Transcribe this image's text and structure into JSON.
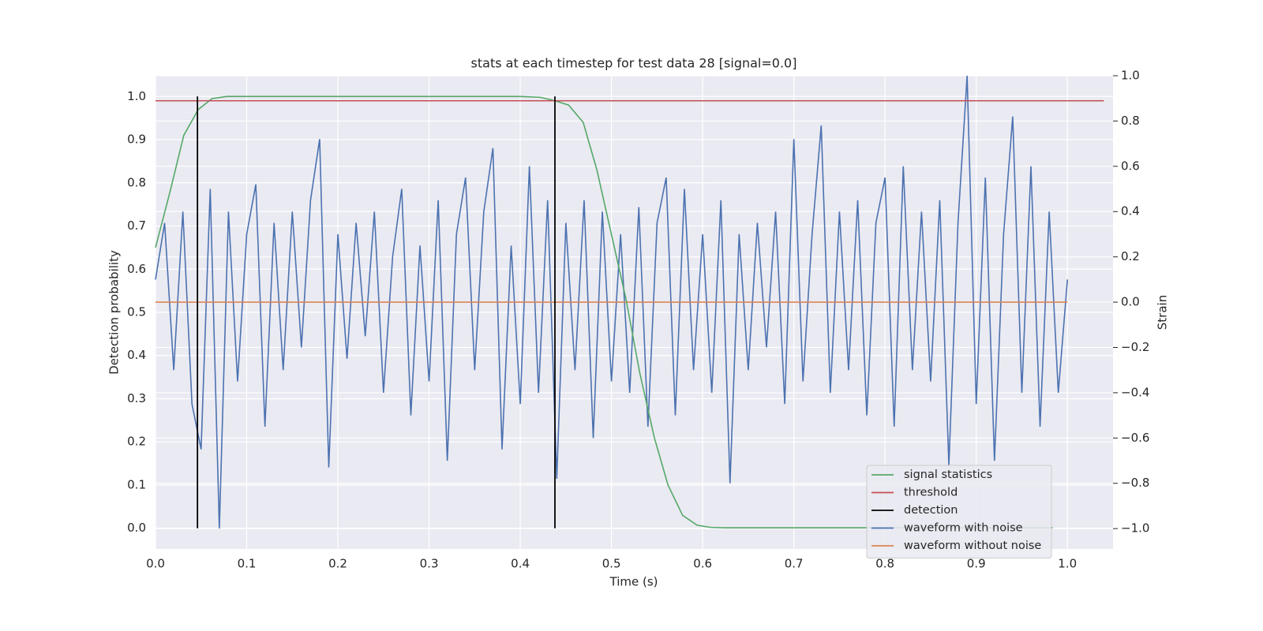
{
  "chart_data": {
    "type": "line",
    "title": "stats at each timestep for test data 28 [signal=0.0]",
    "xlabel": "Time (s)",
    "ylabel": "Detection probability",
    "y2label": "Strain",
    "xlim": [
      0,
      1.05
    ],
    "xticks": [
      {
        "value": 0,
        "label": "0.0"
      },
      0.1,
      0.2,
      0.3,
      0.4,
      0.5,
      0.6,
      0.7,
      0.8,
      0.9,
      {
        "value": 1,
        "label": "1.0"
      }
    ],
    "ylim": [
      -0.048,
      1.048
    ],
    "yticks": [
      {
        "value": 0,
        "label": "0.0"
      },
      0.1,
      0.2,
      0.3,
      0.4,
      0.5,
      0.6,
      0.7,
      0.8,
      0.9,
      {
        "value": 1,
        "label": "1.0"
      }
    ],
    "y2lim": [
      -1.09,
      1.0
    ],
    "y2ticks": [
      {
        "value": -1,
        "label": "−1.0"
      },
      {
        "value": -0.8,
        "label": "−0.8"
      },
      {
        "value": -0.6,
        "label": "−0.6"
      },
      {
        "value": -0.4,
        "label": "−0.4"
      },
      {
        "value": -0.2,
        "label": "−0.2"
      },
      {
        "value": 0,
        "label": "0.0"
      },
      0.2,
      0.4,
      0.6,
      0.8,
      {
        "value": 1,
        "label": "1.0"
      }
    ],
    "grid": true,
    "legend": "lower right",
    "series": [
      {
        "name": "signal statistics",
        "color": "#55a868",
        "kind": "line",
        "x": [
          0,
          0.016,
          0.031,
          0.047,
          0.062,
          0.078,
          0.2,
          0.3,
          0.4,
          0.422,
          0.438,
          0.453,
          0.469,
          0.484,
          0.5,
          0.516,
          0.531,
          0.547,
          0.562,
          0.578,
          0.594,
          0.609,
          0.625,
          0.8,
          0.984
        ],
        "values": [
          0.65,
          0.78,
          0.91,
          0.97,
          0.995,
          1.0,
          1.0,
          1.0,
          1.0,
          0.998,
          0.99,
          0.98,
          0.94,
          0.83,
          0.68,
          0.53,
          0.36,
          0.21,
          0.1,
          0.03,
          0.007,
          0.002,
          0.001,
          0.001,
          0.001
        ]
      },
      {
        "name": "threshold",
        "color": "#c44e52",
        "kind": "line",
        "x": [
          0,
          1.04
        ],
        "values": [
          0.99,
          0.99
        ]
      },
      {
        "name": "detection",
        "color": "#000000",
        "kind": "vlines",
        "x": [
          0.046,
          0.438
        ],
        "values": [
          1,
          1
        ]
      },
      {
        "name": "waveform with noise",
        "color": "#4c72b0",
        "kind": "line",
        "axis": "y2",
        "x": [
          0,
          0.01,
          0.02,
          0.03,
          0.04,
          0.05,
          0.06,
          0.07,
          0.08,
          0.09,
          0.1,
          0.11,
          0.12,
          0.13,
          0.14,
          0.15,
          0.16,
          0.17,
          0.18,
          0.19,
          0.2,
          0.21,
          0.22,
          0.23,
          0.24,
          0.25,
          0.26,
          0.27,
          0.28,
          0.29,
          0.3,
          0.31,
          0.32,
          0.33,
          0.34,
          0.35,
          0.36,
          0.37,
          0.38,
          0.39,
          0.4,
          0.41,
          0.42,
          0.43,
          0.44,
          0.45,
          0.46,
          0.47,
          0.48,
          0.49,
          0.5,
          0.51,
          0.52,
          0.53,
          0.54,
          0.55,
          0.56,
          0.57,
          0.58,
          0.59,
          0.6,
          0.61,
          0.62,
          0.63,
          0.64,
          0.65,
          0.66,
          0.67,
          0.68,
          0.69,
          0.7,
          0.71,
          0.72,
          0.73,
          0.74,
          0.75,
          0.76,
          0.77,
          0.78,
          0.79,
          0.8,
          0.81,
          0.82,
          0.83,
          0.84,
          0.85,
          0.86,
          0.87,
          0.88,
          0.89,
          0.9,
          0.91,
          0.92,
          0.93,
          0.94,
          0.95,
          0.96,
          0.97,
          0.98,
          0.99,
          1.0
        ],
        "values": [
          0.1,
          0.35,
          -0.3,
          0.4,
          -0.45,
          -0.65,
          0.5,
          -1.0,
          0.4,
          -0.35,
          0.3,
          0.52,
          -0.55,
          0.35,
          -0.3,
          0.4,
          -0.2,
          0.45,
          0.72,
          -0.73,
          0.3,
          -0.25,
          0.35,
          -0.15,
          0.4,
          -0.4,
          0.2,
          0.5,
          -0.5,
          0.25,
          -0.35,
          0.45,
          -0.7,
          0.3,
          0.55,
          -0.3,
          0.4,
          0.68,
          -0.65,
          0.25,
          -0.45,
          0.6,
          -0.4,
          0.45,
          -0.78,
          0.35,
          -0.3,
          0.45,
          -0.6,
          0.4,
          -0.35,
          0.3,
          -0.4,
          0.42,
          -0.55,
          0.35,
          0.55,
          -0.5,
          0.5,
          -0.3,
          0.3,
          -0.4,
          0.45,
          -0.8,
          0.3,
          -0.3,
          0.35,
          -0.2,
          0.4,
          -0.45,
          0.72,
          -0.35,
          0.3,
          0.78,
          -0.4,
          0.4,
          -0.3,
          0.45,
          -0.5,
          0.35,
          0.55,
          -0.55,
          0.6,
          -0.3,
          0.4,
          -0.35,
          0.45,
          -0.72,
          0.35,
          1.0,
          -0.45,
          0.55,
          -0.7,
          0.3,
          0.82,
          -0.4,
          0.6,
          -0.55,
          0.4,
          -0.4,
          0.1
        ]
      },
      {
        "name": "waveform without noise",
        "color": "#dd8452",
        "kind": "line",
        "axis": "y2",
        "x": [
          0,
          1.0
        ],
        "values": [
          0,
          0
        ]
      }
    ]
  }
}
